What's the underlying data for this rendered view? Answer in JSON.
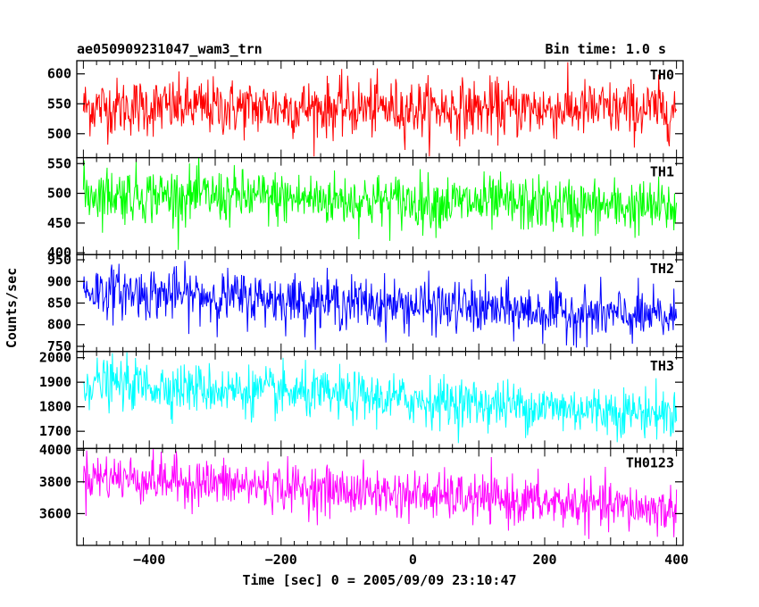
{
  "header": {
    "title": "ae050909231047_wam3_trn",
    "bin_time": "Bin time: 1.0 s"
  },
  "chart_data": {
    "type": "line",
    "xlabel": "Time [sec] 0 = 2005/09/09 23:10:47",
    "ylabel": "Counts/sec",
    "xlim": [
      -510,
      410
    ],
    "xticks": [
      -400,
      -200,
      0,
      200,
      400
    ],
    "x_start": -500,
    "x_end": 400,
    "bin": 1.0,
    "panels": [
      {
        "name": "TH0",
        "color": "#ff0000",
        "ylim": [
          460,
          622
        ],
        "yticks": [
          500,
          550,
          600
        ],
        "mean_start": 545,
        "mean_end": 540,
        "noise_sd": 24,
        "ymin_obs": 462,
        "ymax_obs": 620
      },
      {
        "name": "TH1",
        "color": "#00ff00",
        "ylim": [
          397,
          560
        ],
        "yticks": [
          400,
          450,
          500,
          550
        ],
        "mean_start": 500,
        "mean_end": 475,
        "noise_sd": 23,
        "ymin_obs": 405,
        "ymax_obs": 565
      },
      {
        "name": "TH2",
        "color": "#0000ff",
        "ylim": [
          738,
          962
        ],
        "yticks": [
          750,
          800,
          850,
          900,
          950
        ],
        "mean_start": 880,
        "mean_end": 815,
        "noise_sd": 30,
        "ymin_obs": 742,
        "ymax_obs": 962
      },
      {
        "name": "TH3",
        "color": "#00ffff",
        "ylim": [
          1630,
          2025
        ],
        "yticks": [
          1700,
          1800,
          1900,
          2000
        ],
        "mean_start": 1900,
        "mean_end": 1770,
        "noise_sd": 50,
        "ymin_obs": 1640,
        "ymax_obs": 2025
      },
      {
        "name": "TH0123",
        "color": "#ff00ff",
        "ylim": [
          3400,
          4010
        ],
        "yticks": [
          3600,
          3800,
          4000
        ],
        "mean_start": 3840,
        "mean_end": 3620,
        "noise_sd": 75,
        "ymin_obs": 3440,
        "ymax_obs": 4010
      }
    ]
  }
}
